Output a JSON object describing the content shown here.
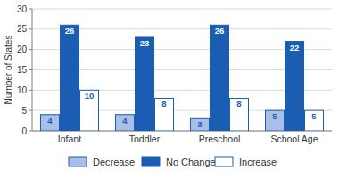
{
  "chart_data": {
    "type": "bar",
    "y_label": "Number of States",
    "categories": [
      "Infant",
      "Toddler",
      "Preschool",
      "School Age"
    ],
    "series": [
      {
        "name": "Decrease",
        "color": "#a8bfe8",
        "values": [
          4,
          4,
          3,
          5
        ]
      },
      {
        "name": "No Change",
        "color": "#1a5db3",
        "values": [
          26,
          23,
          26,
          22
        ]
      },
      {
        "name": "Increase",
        "color": "#ffffff",
        "values": [
          10,
          8,
          8,
          5
        ]
      }
    ],
    "ylim": [
      0,
      30
    ],
    "yticks": [
      0,
      5,
      10,
      15,
      20,
      25,
      30
    ],
    "grid": true,
    "legend": "bottom",
    "data_labels": true
  }
}
